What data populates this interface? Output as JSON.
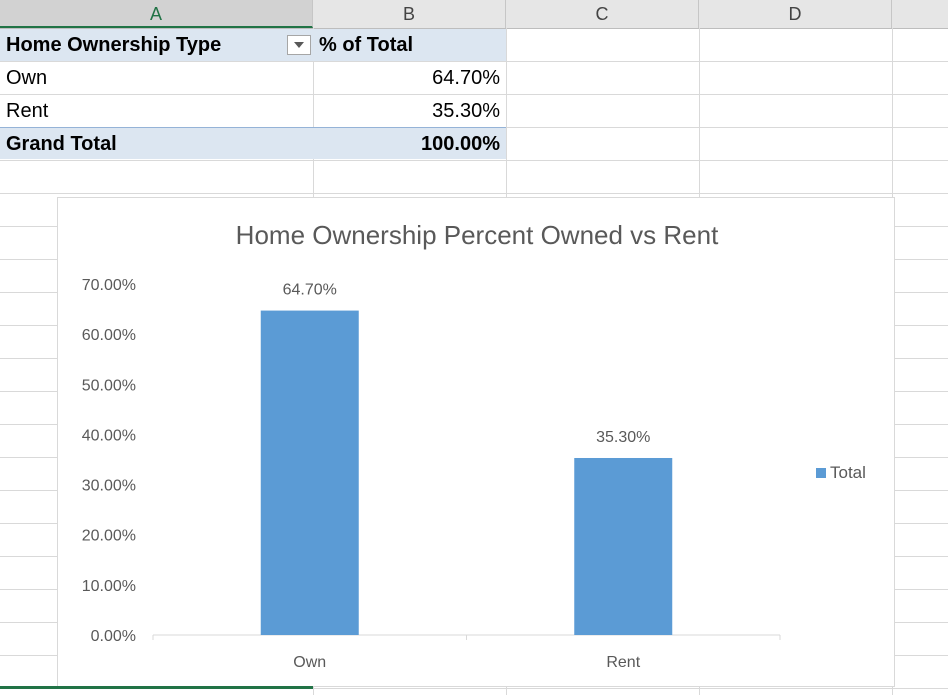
{
  "spreadsheet": {
    "columns": [
      "A",
      "B",
      "C",
      "D"
    ],
    "selected_column": "A"
  },
  "pivot": {
    "header_row_label": "Home Ownership Type",
    "header_value": "% of Total",
    "rows": [
      {
        "label": "Own",
        "value": "64.70%"
      },
      {
        "label": "Rent",
        "value": "35.30%"
      }
    ],
    "grand_total_label": "Grand Total",
    "grand_total_value": "100.00%"
  },
  "chart_data": {
    "type": "bar",
    "title": "Home Ownership Percent Owned vs Rent",
    "categories": [
      "Own",
      "Rent"
    ],
    "series": [
      {
        "name": "Total",
        "values": [
          64.7,
          35.3
        ],
        "labels": [
          "64.70%",
          "35.30%"
        ],
        "color": "#5b9bd5"
      }
    ],
    "ylim": [
      0,
      70
    ],
    "yticks": [
      "0.00%",
      "10.00%",
      "20.00%",
      "30.00%",
      "40.00%",
      "50.00%",
      "60.00%",
      "70.00%"
    ],
    "legend_position": "right",
    "grid": false
  }
}
